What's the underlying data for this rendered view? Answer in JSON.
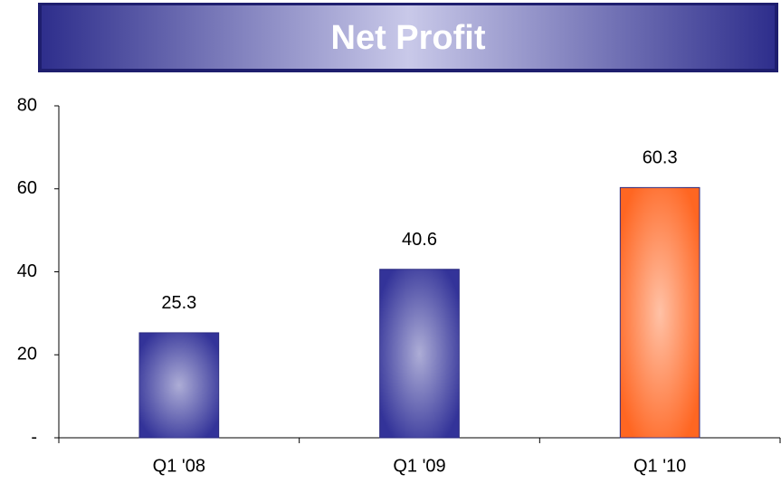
{
  "chart_data": {
    "type": "bar",
    "title": "Net Profit",
    "categories": [
      "Q1 '08",
      "Q1 '09",
      "Q1 '10"
    ],
    "values": [
      25.3,
      40.6,
      60.3
    ],
    "colors": [
      "#333399",
      "#333399",
      "#ff6622"
    ],
    "ylim": [
      0,
      80
    ],
    "yticks": [
      {
        "value": 0,
        "label": "-"
      },
      20,
      40,
      60,
      80
    ],
    "grid": false
  }
}
